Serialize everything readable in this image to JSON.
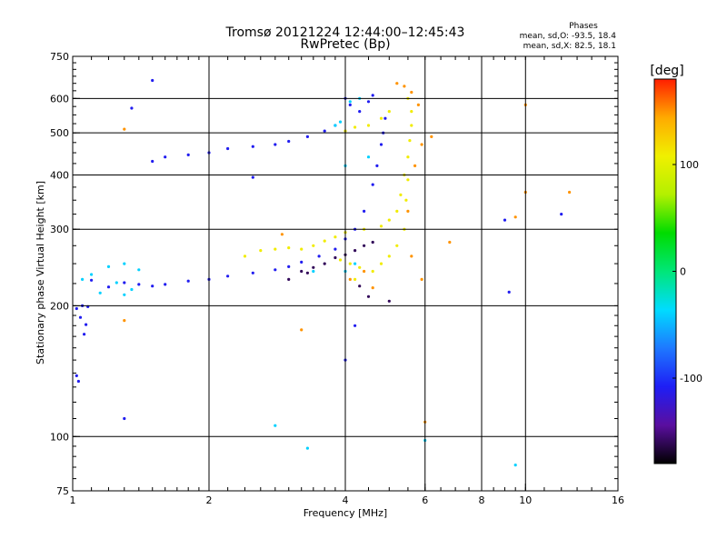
{
  "chart_data": {
    "type": "scatter",
    "title": "Tromsø 20121224 12:44:00–12:45:43",
    "subtitle": "RwPretec (Bp)",
    "xlabel": "Frequency [MHz]",
    "ylabel": "Stationary phase Virtual Height [km]",
    "xscale": "log",
    "yscale": "log",
    "xlim": [
      1,
      16
    ],
    "ylim": [
      75,
      750
    ],
    "xticks": [
      "1",
      "2",
      "4",
      "6",
      "8",
      "10",
      "16"
    ],
    "xtick_values": [
      1,
      2,
      4,
      6,
      8,
      10,
      16
    ],
    "yticks": [
      "75",
      "100",
      "200",
      "300",
      "400",
      "500",
      "600",
      "750"
    ],
    "ytick_values": [
      75,
      100,
      200,
      300,
      400,
      500,
      600,
      750
    ],
    "x_gridlines": [
      2,
      4,
      6,
      8,
      10
    ],
    "y_gridlines": [
      100,
      200,
      300,
      400,
      500,
      600
    ],
    "grid": true,
    "legend": {
      "position": "top-right",
      "title": "Phases",
      "line1": "mean, sd,O: -93.5, 18.4",
      "line2": "mean, sd,X: 82.5, 18.1"
    },
    "colorbar": {
      "label": "[deg]",
      "range": [
        -180,
        180
      ],
      "ticks": [
        "100",
        "0",
        "-100"
      ],
      "tick_values": [
        100,
        0,
        -100
      ],
      "colormap": [
        "#000000",
        "#5a0ea0",
        "#1e1ef5",
        "#1e78ff",
        "#00dcff",
        "#00e678",
        "#00dc00",
        "#b4f000",
        "#f0f000",
        "#ffaa00",
        "#ff1e00"
      ]
    },
    "series": [
      {
        "phase": -110,
        "points": [
          [
            1.02,
            197
          ],
          [
            1.05,
            200
          ],
          [
            1.08,
            199
          ],
          [
            1.04,
            188
          ],
          [
            1.06,
            172
          ],
          [
            1.07,
            181
          ],
          [
            1.02,
            138
          ],
          [
            1.03,
            134
          ],
          [
            1.1,
            229
          ],
          [
            1.2,
            221
          ],
          [
            1.3,
            226
          ],
          [
            1.4,
            224
          ],
          [
            1.5,
            222
          ],
          [
            1.6,
            224
          ],
          [
            1.8,
            228
          ],
          [
            2.0,
            230
          ],
          [
            2.2,
            234
          ],
          [
            2.5,
            238
          ],
          [
            2.8,
            242
          ],
          [
            3.0,
            246
          ],
          [
            3.2,
            252
          ],
          [
            3.5,
            260
          ],
          [
            3.8,
            270
          ],
          [
            4.0,
            285
          ],
          [
            4.2,
            300
          ],
          [
            4.4,
            330
          ],
          [
            4.6,
            380
          ],
          [
            4.7,
            420
          ],
          [
            4.8,
            470
          ],
          [
            4.85,
            500
          ],
          [
            4.9,
            540
          ],
          [
            1.6,
            440
          ],
          [
            1.8,
            445
          ],
          [
            2.0,
            450
          ],
          [
            2.2,
            460
          ],
          [
            2.5,
            465
          ],
          [
            2.8,
            470
          ],
          [
            3.0,
            478
          ],
          [
            3.3,
            490
          ],
          [
            3.6,
            505
          ],
          [
            3.8,
            520
          ],
          [
            4.0,
            600
          ],
          [
            4.1,
            580
          ],
          [
            4.3,
            560
          ],
          [
            4.5,
            590
          ],
          [
            4.6,
            610
          ],
          [
            1.35,
            570
          ],
          [
            1.5,
            660
          ],
          [
            1.3,
            110
          ],
          [
            1.5,
            430
          ],
          [
            2.5,
            395
          ],
          [
            4.0,
            150
          ],
          [
            4.2,
            180
          ],
          [
            9.0,
            315
          ],
          [
            9.2,
            215
          ],
          [
            12,
            325
          ]
        ]
      },
      {
        "phase": -160,
        "points": [
          [
            3.2,
            240
          ],
          [
            3.4,
            245
          ],
          [
            3.6,
            250
          ],
          [
            3.8,
            258
          ],
          [
            4.0,
            262
          ],
          [
            4.2,
            268
          ],
          [
            4.4,
            275
          ],
          [
            4.6,
            280
          ],
          [
            3.0,
            230
          ],
          [
            3.3,
            238
          ],
          [
            4.5,
            210
          ],
          [
            4.3,
            222
          ],
          [
            5.0,
            205
          ]
        ]
      },
      {
        "phase": -40,
        "points": [
          [
            1.05,
            230
          ],
          [
            1.1,
            236
          ],
          [
            1.2,
            246
          ],
          [
            1.3,
            250
          ],
          [
            1.4,
            242
          ],
          [
            1.25,
            226
          ],
          [
            1.15,
            214
          ],
          [
            1.3,
            212
          ],
          [
            1.35,
            218
          ],
          [
            3.8,
            520
          ],
          [
            3.9,
            530
          ],
          [
            4.1,
            590
          ],
          [
            4.3,
            600
          ],
          [
            4.0,
            420
          ],
          [
            4.5,
            440
          ],
          [
            4.2,
            250
          ],
          [
            4.0,
            240
          ],
          [
            2.8,
            106
          ],
          [
            3.3,
            94
          ],
          [
            6.0,
            98
          ],
          [
            9.5,
            86
          ],
          [
            3.4,
            240
          ]
        ]
      },
      {
        "phase": 110,
        "points": [
          [
            2.4,
            260
          ],
          [
            2.6,
            268
          ],
          [
            2.8,
            270
          ],
          [
            3.0,
            272
          ],
          [
            3.2,
            270
          ],
          [
            3.4,
            275
          ],
          [
            3.6,
            282
          ],
          [
            3.8,
            288
          ],
          [
            4.0,
            295
          ],
          [
            4.4,
            300
          ],
          [
            4.8,
            305
          ],
          [
            5.0,
            315
          ],
          [
            5.2,
            330
          ],
          [
            5.3,
            360
          ],
          [
            5.4,
            400
          ],
          [
            5.5,
            440
          ],
          [
            5.55,
            480
          ],
          [
            5.6,
            520
          ],
          [
            5.6,
            560
          ],
          [
            4.2,
            230
          ],
          [
            4.6,
            240
          ],
          [
            4.8,
            250
          ],
          [
            5.0,
            260
          ],
          [
            5.2,
            275
          ],
          [
            5.4,
            300
          ],
          [
            5.45,
            350
          ],
          [
            5.5,
            390
          ],
          [
            4.5,
            520
          ],
          [
            4.8,
            540
          ],
          [
            5.0,
            560
          ],
          [
            5.5,
            600
          ],
          [
            4.2,
            515
          ],
          [
            4.0,
            505
          ],
          [
            3.9,
            255
          ],
          [
            4.1,
            250
          ],
          [
            4.3,
            245
          ]
        ]
      },
      {
        "phase": 150,
        "points": [
          [
            5.4,
            640
          ],
          [
            5.6,
            620
          ],
          [
            5.2,
            650
          ],
          [
            5.7,
            420
          ],
          [
            5.5,
            330
          ],
          [
            5.9,
            470
          ],
          [
            6.2,
            490
          ],
          [
            5.6,
            260
          ],
          [
            4.4,
            240
          ],
          [
            4.6,
            220
          ],
          [
            2.9,
            292
          ],
          [
            3.2,
            176
          ],
          [
            4.1,
            230
          ],
          [
            5.8,
            580
          ],
          [
            6.8,
            280
          ],
          [
            10,
            365
          ],
          [
            10,
            580
          ],
          [
            12.5,
            365
          ],
          [
            9.5,
            320
          ],
          [
            1.3,
            510
          ],
          [
            6.0,
            108
          ],
          [
            1.3,
            185
          ],
          [
            5.9,
            230
          ]
        ]
      }
    ]
  }
}
